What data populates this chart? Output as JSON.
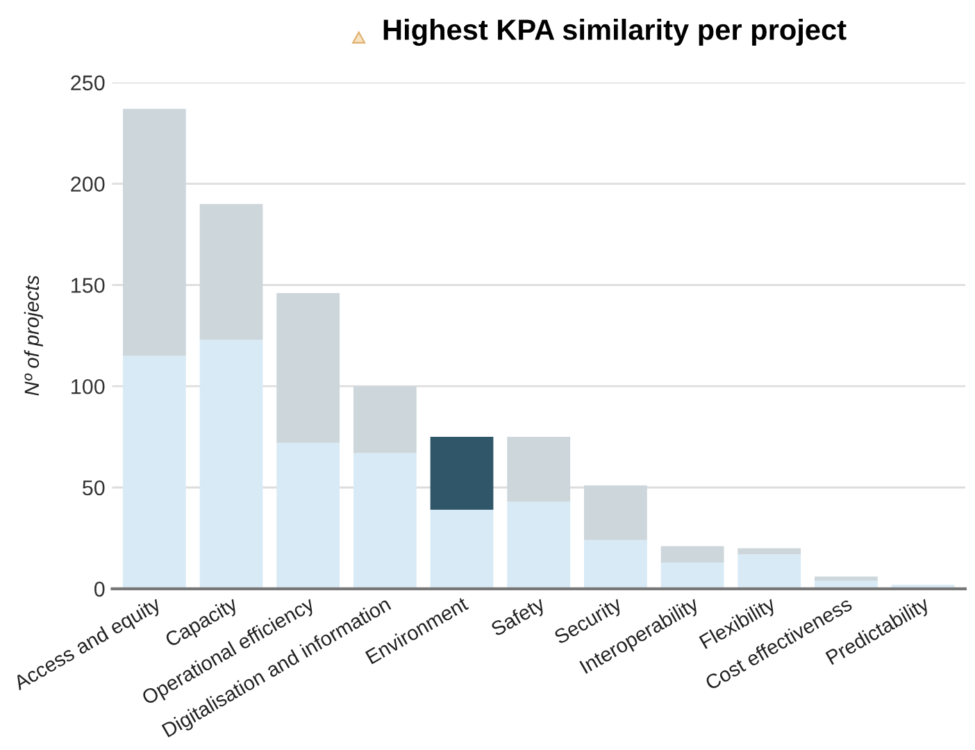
{
  "chart_data": {
    "type": "bar",
    "title": "Highest KPA similarity per project",
    "ylabel": "Nº of projects",
    "categories": [
      "Access and equity",
      "Capacity",
      "Operational efficiency",
      "Digitalisation and information",
      "Environment",
      "Safety",
      "Security",
      "Interoperability",
      "Flexibility",
      "Cost effectiveness",
      "Predictability"
    ],
    "stacked": true,
    "series": [
      {
        "color": "#d8eaf6",
        "values": [
          115,
          123,
          72,
          67,
          39,
          43,
          24,
          13,
          17,
          4,
          2
        ]
      },
      {
        "colors": [
          "#ccd6db",
          "#ccd6db",
          "#ccd6db",
          "#ccd6db",
          "#2f5669",
          "#ccd6db",
          "#ccd6db",
          "#ccd6db",
          "#ccd6db",
          "#ccd6db",
          "#ccd6db"
        ],
        "values": [
          122,
          67,
          74,
          33,
          36,
          32,
          27,
          8,
          3,
          2,
          null
        ]
      }
    ],
    "ylim": [
      0,
      250
    ],
    "yticks": [
      0,
      50,
      100,
      150,
      200,
      250
    ],
    "grid": "y"
  }
}
